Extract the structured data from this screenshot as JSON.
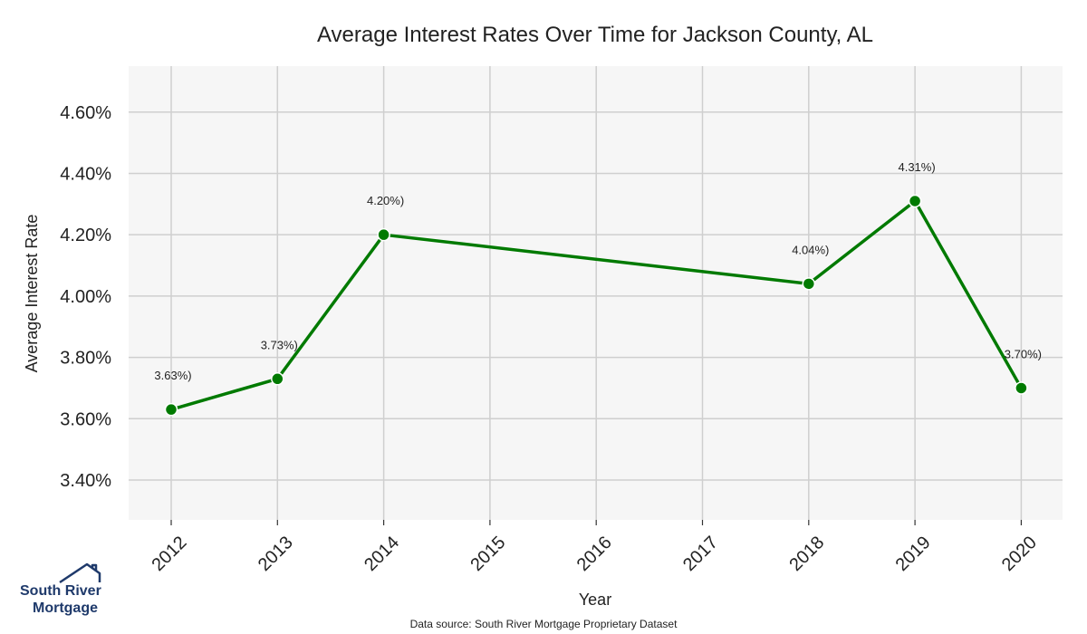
{
  "chart_data": {
    "type": "line",
    "title": "Average Interest Rates Over Time for Jackson County, AL",
    "xlabel": "Year",
    "ylabel": "Average Interest Rate",
    "categories": [
      "2012",
      "2013",
      "2014",
      "2015",
      "2016",
      "2017",
      "2018",
      "2019",
      "2020"
    ],
    "ylim": [
      3.27,
      4.75
    ],
    "yticks": [
      3.4,
      3.6,
      3.8,
      4.0,
      4.2,
      4.4,
      4.6
    ],
    "ytick_labels": [
      "3.40%",
      "3.60%",
      "3.80%",
      "4.00%",
      "4.20%",
      "4.40%",
      "4.60%"
    ],
    "grid": true,
    "series": [
      {
        "name": "Average Interest Rate",
        "color": "#007a00",
        "points": [
          {
            "x": "2012",
            "y": 3.63,
            "label": "3.63%)"
          },
          {
            "x": "2013",
            "y": 3.73,
            "label": "3.73%)"
          },
          {
            "x": "2014",
            "y": 4.2,
            "label": "4.20%)"
          },
          {
            "x": "2018",
            "y": 4.04,
            "label": "4.04%)"
          },
          {
            "x": "2019",
            "y": 4.31,
            "label": "4.31%)"
          },
          {
            "x": "2020",
            "y": 3.7,
            "label": "3.70%)"
          }
        ]
      }
    ],
    "source_note": "Data source: South River Mortgage Proprietary Dataset"
  },
  "logo": {
    "line1": "South River",
    "line2": "Mortgage",
    "color": "#1f3a6b",
    "icon": "house-icon"
  }
}
